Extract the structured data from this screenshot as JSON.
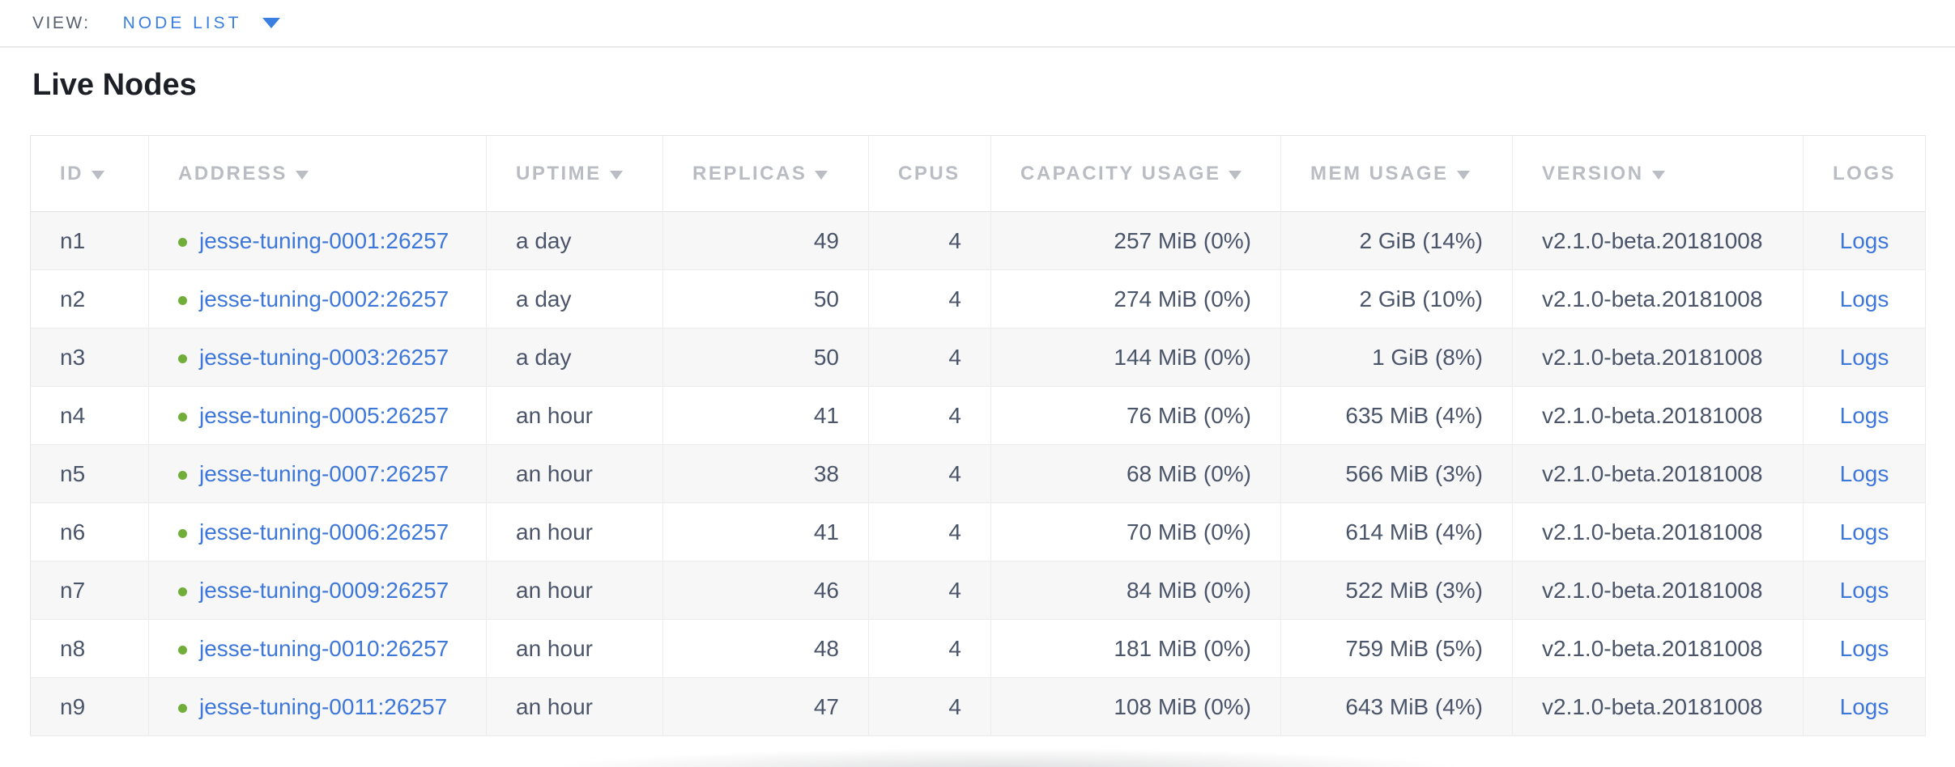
{
  "view_bar": {
    "label": "VIEW:",
    "selected": "NODE LIST"
  },
  "page": {
    "title": "Live Nodes"
  },
  "icons": {
    "sort_indicator": "caret-down-triangle",
    "dropdown_caret": "caret-down-triangle",
    "node_status": "green-dot-healthy"
  },
  "colors": {
    "accent_blue": "#3b7fe0",
    "link_blue": "#3d77d9",
    "healthy_green": "#70ad39",
    "header_gray": "#b9bcc2",
    "cell_text": "#4a556a",
    "stripe_gray": "#f7f7f8"
  },
  "table": {
    "columns": [
      {
        "key": "id",
        "label": "ID",
        "sortable": true
      },
      {
        "key": "address",
        "label": "ADDRESS",
        "sortable": true
      },
      {
        "key": "uptime",
        "label": "UPTIME",
        "sortable": true
      },
      {
        "key": "replicas",
        "label": "REPLICAS",
        "sortable": true
      },
      {
        "key": "cpus",
        "label": "CPUS",
        "sortable": false
      },
      {
        "key": "capacity",
        "label": "CAPACITY USAGE",
        "sortable": true
      },
      {
        "key": "mem",
        "label": "MEM USAGE",
        "sortable": true
      },
      {
        "key": "version",
        "label": "VERSION",
        "sortable": true
      },
      {
        "key": "logs",
        "label": "LOGS",
        "sortable": false
      }
    ],
    "rows": [
      {
        "id": "n1",
        "status": "healthy",
        "address": "jesse-tuning-0001:26257",
        "uptime": "a day",
        "replicas": "49",
        "cpus": "4",
        "capacity": "257 MiB (0%)",
        "mem": "2 GiB (14%)",
        "version": "v2.1.0-beta.20181008",
        "logs": "Logs"
      },
      {
        "id": "n2",
        "status": "healthy",
        "address": "jesse-tuning-0002:26257",
        "uptime": "a day",
        "replicas": "50",
        "cpus": "4",
        "capacity": "274 MiB (0%)",
        "mem": "2 GiB (10%)",
        "version": "v2.1.0-beta.20181008",
        "logs": "Logs"
      },
      {
        "id": "n3",
        "status": "healthy",
        "address": "jesse-tuning-0003:26257",
        "uptime": "a day",
        "replicas": "50",
        "cpus": "4",
        "capacity": "144 MiB (0%)",
        "mem": "1 GiB (8%)",
        "version": "v2.1.0-beta.20181008",
        "logs": "Logs"
      },
      {
        "id": "n4",
        "status": "healthy",
        "address": "jesse-tuning-0005:26257",
        "uptime": "an hour",
        "replicas": "41",
        "cpus": "4",
        "capacity": "76 MiB (0%)",
        "mem": "635 MiB (4%)",
        "version": "v2.1.0-beta.20181008",
        "logs": "Logs"
      },
      {
        "id": "n5",
        "status": "healthy",
        "address": "jesse-tuning-0007:26257",
        "uptime": "an hour",
        "replicas": "38",
        "cpus": "4",
        "capacity": "68 MiB (0%)",
        "mem": "566 MiB (3%)",
        "version": "v2.1.0-beta.20181008",
        "logs": "Logs"
      },
      {
        "id": "n6",
        "status": "healthy",
        "address": "jesse-tuning-0006:26257",
        "uptime": "an hour",
        "replicas": "41",
        "cpus": "4",
        "capacity": "70 MiB (0%)",
        "mem": "614 MiB (4%)",
        "version": "v2.1.0-beta.20181008",
        "logs": "Logs"
      },
      {
        "id": "n7",
        "status": "healthy",
        "address": "jesse-tuning-0009:26257",
        "uptime": "an hour",
        "replicas": "46",
        "cpus": "4",
        "capacity": "84 MiB (0%)",
        "mem": "522 MiB (3%)",
        "version": "v2.1.0-beta.20181008",
        "logs": "Logs"
      },
      {
        "id": "n8",
        "status": "healthy",
        "address": "jesse-tuning-0010:26257",
        "uptime": "an hour",
        "replicas": "48",
        "cpus": "4",
        "capacity": "181 MiB (0%)",
        "mem": "759 MiB (5%)",
        "version": "v2.1.0-beta.20181008",
        "logs": "Logs"
      },
      {
        "id": "n9",
        "status": "healthy",
        "address": "jesse-tuning-0011:26257",
        "uptime": "an hour",
        "replicas": "47",
        "cpus": "4",
        "capacity": "108 MiB (0%)",
        "mem": "643 MiB (4%)",
        "version": "v2.1.0-beta.20181008",
        "logs": "Logs"
      }
    ]
  }
}
